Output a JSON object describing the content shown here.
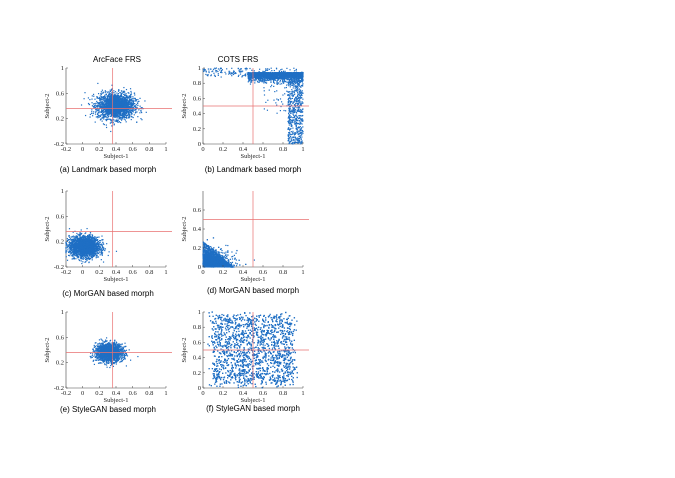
{
  "column_titles": [
    "ArcFace FRS",
    "COTS FRS"
  ],
  "chart_data": [
    {
      "id": "a",
      "type": "scatter",
      "caption": "(a) Landmark based morph",
      "xlabel": "Subject-1",
      "ylabel": "Subject-2",
      "xlim": [
        -0.2,
        1
      ],
      "ylim": [
        -0.2,
        1
      ],
      "xticks": [
        "-0.2",
        "0",
        "0.2",
        "0.4",
        "0.6",
        "0.8",
        "1"
      ],
      "yticks": [
        "-0.2",
        "0.2",
        "0.6",
        "1"
      ],
      "threshold": {
        "x": 0.36,
        "y": 0.36
      },
      "cluster": {
        "shape": "gaussian",
        "cx": 0.4,
        "cy": 0.4,
        "sx": 0.11,
        "sy": 0.1,
        "n": 2200
      },
      "point_color": "#1f6fc4",
      "line_color": "#e87070"
    },
    {
      "id": "b",
      "type": "scatter",
      "caption": "(b) Landmark based morph",
      "xlabel": "Subject-1",
      "ylabel": "Subject-2",
      "xlim": [
        0,
        1
      ],
      "ylim": [
        0,
        1
      ],
      "xticks": [
        "0",
        "0.2",
        "0.4",
        "0.6",
        "0.8",
        "1"
      ],
      "yticks": [
        "0",
        "0.2",
        "0.4",
        "0.6",
        "0.8",
        "1"
      ],
      "threshold": {
        "x": 0.5,
        "y": 0.5
      },
      "cluster": {
        "shape": "corner-high",
        "n": 2600
      },
      "point_color": "#1f6fc4",
      "line_color": "#e87070"
    },
    {
      "id": "c",
      "type": "scatter",
      "caption": "(c) MorGAN based morph",
      "xlabel": "Subject-1",
      "ylabel": "Subject-2",
      "xlim": [
        -0.2,
        1
      ],
      "ylim": [
        -0.2,
        1
      ],
      "xticks": [
        "-0.2",
        "0",
        "0.2",
        "0.4",
        "0.6",
        "0.8",
        "1"
      ],
      "yticks": [
        "-0.2",
        "0.2",
        "0.6",
        "1"
      ],
      "threshold": {
        "x": 0.36,
        "y": 0.36
      },
      "cluster": {
        "shape": "gaussian",
        "cx": 0.02,
        "cy": 0.12,
        "sx": 0.09,
        "sy": 0.08,
        "n": 2200
      },
      "point_color": "#1f6fc4",
      "line_color": "#e87070"
    },
    {
      "id": "d",
      "type": "scatter",
      "caption": "(d) MorGAN based morph",
      "xlabel": "Subject-1",
      "ylabel": "Subject-2",
      "xlim": [
        0,
        1
      ],
      "ylim": [
        0,
        0.8
      ],
      "xticks": [
        "0",
        "0.2",
        "0.4",
        "0.6",
        "0.8",
        "1"
      ],
      "yticks": [
        "0",
        "0.2",
        "0.4",
        "0.6"
      ],
      "threshold": {
        "x": 0.5,
        "y": 0.5
      },
      "cluster": {
        "shape": "corner-low",
        "n": 2400
      },
      "point_color": "#1f6fc4",
      "line_color": "#e87070"
    },
    {
      "id": "e",
      "type": "scatter",
      "caption": "(e) StyleGAN based morph",
      "xlabel": "Subject-1",
      "ylabel": "Subject-2",
      "xlim": [
        -0.2,
        1
      ],
      "ylim": [
        -0.2,
        1
      ],
      "xticks": [
        "-0.2",
        "0",
        "0.2",
        "0.4",
        "0.6",
        "0.8",
        "1"
      ],
      "yticks": [
        "-0.2",
        "0.2",
        "0.6",
        "1"
      ],
      "threshold": {
        "x": 0.36,
        "y": 0.36
      },
      "cluster": {
        "shape": "gaussian",
        "cx": 0.32,
        "cy": 0.36,
        "sx": 0.08,
        "sy": 0.07,
        "n": 1800
      },
      "point_color": "#1f6fc4",
      "line_color": "#e87070"
    },
    {
      "id": "f",
      "type": "scatter",
      "caption": "(f) StyleGAN based morph",
      "xlabel": "Subject-1",
      "ylabel": "Subject-2",
      "xlim": [
        0,
        1
      ],
      "ylim": [
        0,
        1
      ],
      "xticks": [
        "0",
        "0.2",
        "0.4",
        "0.6",
        "0.8",
        "1"
      ],
      "yticks": [
        "0",
        "0.2",
        "0.4",
        "0.6",
        "0.8",
        "1"
      ],
      "threshold": {
        "x": 0.5,
        "y": 0.5
      },
      "cluster": {
        "shape": "uniform-wide",
        "n": 3400
      },
      "point_color": "#1f6fc4",
      "line_color": "#e87070"
    }
  ]
}
